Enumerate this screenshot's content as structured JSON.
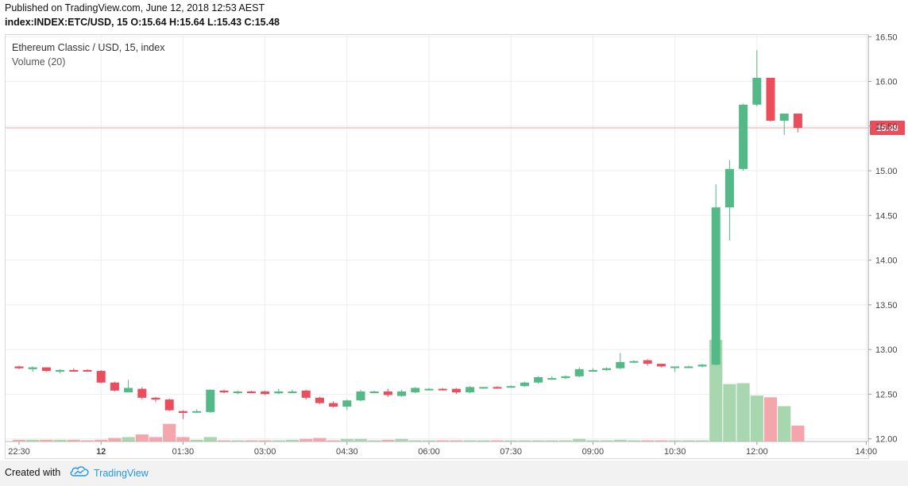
{
  "header": {
    "published": "Published on TradingView.com, June 12, 2018 12:53 AEST",
    "symbol": "index:INDEX:ETC/USD, 15",
    "ohlc": "O:15.64 H:15.64 L:15.43 C:15.48"
  },
  "legend": {
    "title": "Ethereum Classic / USD, 15, index",
    "volume": "Volume (20)"
  },
  "footer": {
    "created_with": "Created with",
    "brand": "TradingView"
  },
  "colors": {
    "up": "#53b987",
    "down": "#eb4d5c",
    "vol_up": "#a8d6ae",
    "vol_down": "#f5a6ac",
    "price_line": "#f4a3aa",
    "price_badge": "#eb4d5c",
    "grid": "#eeeeee",
    "axis_text": "#444444",
    "brand": "#2196f3"
  },
  "chart_data": {
    "type": "candlestick",
    "title": "Ethereum Classic / USD, 15, index",
    "interval_minutes": 15,
    "x_ticks": [
      "22:30",
      "12",
      "01:30",
      "03:00",
      "04:30",
      "06:00",
      "07:30",
      "09:00",
      "10:30",
      "12:00",
      "14:00"
    ],
    "y_ticks": [
      "12.00",
      "12.50",
      "13.00",
      "13.50",
      "14.00",
      "14.50",
      "15.00",
      "15.50",
      "16.00",
      "16.50"
    ],
    "ylim": [
      11.97,
      16.52
    ],
    "last_price": 15.48,
    "last_price_label": "15.48",
    "grid": true,
    "candles": [
      {
        "time": "22:30",
        "o": 12.81,
        "h": 12.82,
        "l": 12.78,
        "c": 12.79,
        "v": 2
      },
      {
        "time": "22:45",
        "o": 12.78,
        "h": 12.81,
        "l": 12.75,
        "c": 12.8,
        "v": 2
      },
      {
        "time": "23:00",
        "o": 12.8,
        "h": 12.8,
        "l": 12.75,
        "c": 12.76,
        "v": 2
      },
      {
        "time": "23:15",
        "o": 12.76,
        "h": 12.78,
        "l": 12.73,
        "c": 12.77,
        "v": 2
      },
      {
        "time": "23:30",
        "o": 12.77,
        "h": 12.79,
        "l": 12.75,
        "c": 12.76,
        "v": 2
      },
      {
        "time": "23:45",
        "o": 12.77,
        "h": 12.78,
        "l": 12.75,
        "c": 12.76,
        "v": 1
      },
      {
        "time": "00:00",
        "o": 12.76,
        "h": 12.77,
        "l": 12.62,
        "c": 12.63,
        "v": 2
      },
      {
        "time": "00:15",
        "o": 12.63,
        "h": 12.64,
        "l": 12.53,
        "c": 12.54,
        "v": 4
      },
      {
        "time": "00:30",
        "o": 12.52,
        "h": 12.66,
        "l": 12.52,
        "c": 12.57,
        "v": 5
      },
      {
        "time": "00:45",
        "o": 12.56,
        "h": 12.58,
        "l": 12.44,
        "c": 12.46,
        "v": 8
      },
      {
        "time": "01:00",
        "o": 12.46,
        "h": 12.47,
        "l": 12.41,
        "c": 12.44,
        "v": 5
      },
      {
        "time": "01:15",
        "o": 12.44,
        "h": 12.45,
        "l": 12.31,
        "c": 12.32,
        "v": 20
      },
      {
        "time": "01:30",
        "o": 12.31,
        "h": 12.32,
        "l": 12.22,
        "c": 12.29,
        "v": 5
      },
      {
        "time": "01:45",
        "o": 12.3,
        "h": 12.33,
        "l": 12.29,
        "c": 12.31,
        "v": 2
      },
      {
        "time": "02:00",
        "o": 12.3,
        "h": 12.55,
        "l": 12.29,
        "c": 12.55,
        "v": 5
      },
      {
        "time": "02:15",
        "o": 12.54,
        "h": 12.55,
        "l": 12.51,
        "c": 12.52,
        "v": 1
      },
      {
        "time": "02:30",
        "o": 12.52,
        "h": 12.54,
        "l": 12.5,
        "c": 12.53,
        "v": 1
      },
      {
        "time": "02:45",
        "o": 12.53,
        "h": 12.54,
        "l": 12.51,
        "c": 12.52,
        "v": 1
      },
      {
        "time": "03:00",
        "o": 12.53,
        "h": 12.54,
        "l": 12.49,
        "c": 12.5,
        "v": 1
      },
      {
        "time": "03:15",
        "o": 12.51,
        "h": 12.56,
        "l": 12.5,
        "c": 12.53,
        "v": 1
      },
      {
        "time": "03:30",
        "o": 12.52,
        "h": 12.55,
        "l": 12.51,
        "c": 12.53,
        "v": 2
      },
      {
        "time": "03:45",
        "o": 12.54,
        "h": 12.55,
        "l": 12.44,
        "c": 12.46,
        "v": 3
      },
      {
        "time": "04:00",
        "o": 12.46,
        "h": 12.47,
        "l": 12.39,
        "c": 12.4,
        "v": 4
      },
      {
        "time": "04:15",
        "o": 12.4,
        "h": 12.42,
        "l": 12.35,
        "c": 12.36,
        "v": 1
      },
      {
        "time": "04:30",
        "o": 12.36,
        "h": 12.44,
        "l": 12.32,
        "c": 12.43,
        "v": 3
      },
      {
        "time": "04:45",
        "o": 12.43,
        "h": 12.55,
        "l": 12.42,
        "c": 12.53,
        "v": 3
      },
      {
        "time": "05:00",
        "o": 12.52,
        "h": 12.54,
        "l": 12.51,
        "c": 12.53,
        "v": 1
      },
      {
        "time": "05:15",
        "o": 12.53,
        "h": 12.56,
        "l": 12.47,
        "c": 12.49,
        "v": 2
      },
      {
        "time": "05:30",
        "o": 12.48,
        "h": 12.55,
        "l": 12.47,
        "c": 12.53,
        "v": 3
      },
      {
        "time": "05:45",
        "o": 12.52,
        "h": 12.58,
        "l": 12.51,
        "c": 12.57,
        "v": 1
      },
      {
        "time": "06:00",
        "o": 12.55,
        "h": 12.57,
        "l": 12.54,
        "c": 12.56,
        "v": 1
      },
      {
        "time": "06:15",
        "o": 12.56,
        "h": 12.57,
        "l": 12.54,
        "c": 12.55,
        "v": 1
      },
      {
        "time": "06:30",
        "o": 12.56,
        "h": 12.57,
        "l": 12.5,
        "c": 12.52,
        "v": 1
      },
      {
        "time": "06:45",
        "o": 12.52,
        "h": 12.59,
        "l": 12.51,
        "c": 12.58,
        "v": 1
      },
      {
        "time": "07:00",
        "o": 12.57,
        "h": 12.58,
        "l": 12.56,
        "c": 12.58,
        "v": 1
      },
      {
        "time": "07:15",
        "o": 12.58,
        "h": 12.59,
        "l": 12.56,
        "c": 12.57,
        "v": 1
      },
      {
        "time": "07:30",
        "o": 12.58,
        "h": 12.6,
        "l": 12.57,
        "c": 12.59,
        "v": 1
      },
      {
        "time": "07:45",
        "o": 12.59,
        "h": 12.64,
        "l": 12.58,
        "c": 12.63,
        "v": 1
      },
      {
        "time": "08:00",
        "o": 12.63,
        "h": 12.7,
        "l": 12.62,
        "c": 12.69,
        "v": 1
      },
      {
        "time": "08:15",
        "o": 12.68,
        "h": 12.7,
        "l": 12.66,
        "c": 12.68,
        "v": 1
      },
      {
        "time": "08:30",
        "o": 12.68,
        "h": 12.71,
        "l": 12.67,
        "c": 12.7,
        "v": 1
      },
      {
        "time": "08:45",
        "o": 12.7,
        "h": 12.8,
        "l": 12.69,
        "c": 12.78,
        "v": 3
      },
      {
        "time": "09:00",
        "o": 12.77,
        "h": 12.79,
        "l": 12.75,
        "c": 12.77,
        "v": 1
      },
      {
        "time": "09:15",
        "o": 12.77,
        "h": 12.8,
        "l": 12.76,
        "c": 12.79,
        "v": 1
      },
      {
        "time": "09:30",
        "o": 12.79,
        "h": 12.96,
        "l": 12.78,
        "c": 12.86,
        "v": 2
      },
      {
        "time": "09:45",
        "o": 12.86,
        "h": 12.88,
        "l": 12.85,
        "c": 12.87,
        "v": 1
      },
      {
        "time": "10:00",
        "o": 12.88,
        "h": 12.89,
        "l": 12.82,
        "c": 12.84,
        "v": 1
      },
      {
        "time": "10:15",
        "o": 12.84,
        "h": 12.84,
        "l": 12.8,
        "c": 12.81,
        "v": 1
      },
      {
        "time": "10:30",
        "o": 12.81,
        "h": 12.81,
        "l": 12.75,
        "c": 12.81,
        "v": 1
      },
      {
        "time": "10:45",
        "o": 12.81,
        "h": 12.82,
        "l": 12.8,
        "c": 12.81,
        "v": 1
      },
      {
        "time": "11:00",
        "o": 12.81,
        "h": 12.84,
        "l": 12.8,
        "c": 12.83,
        "v": 1
      },
      {
        "time": "11:15",
        "o": 12.83,
        "h": 14.85,
        "l": 12.82,
        "c": 14.59,
        "v": 115
      },
      {
        "time": "11:30",
        "o": 14.59,
        "h": 15.12,
        "l": 14.22,
        "c": 15.02,
        "v": 65
      },
      {
        "time": "11:45",
        "o": 15.02,
        "h": 15.75,
        "l": 15.0,
        "c": 15.74,
        "v": 66
      },
      {
        "time": "12:00",
        "o": 15.74,
        "h": 16.35,
        "l": 15.72,
        "c": 16.04,
        "v": 52
      },
      {
        "time": "12:15",
        "o": 16.04,
        "h": 16.04,
        "l": 15.55,
        "c": 15.56,
        "v": 50
      },
      {
        "time": "12:30",
        "o": 15.56,
        "h": 15.64,
        "l": 15.4,
        "c": 15.64,
        "v": 40
      },
      {
        "time": "12:45",
        "o": 15.64,
        "h": 15.64,
        "l": 15.43,
        "c": 15.48,
        "v": 18
      }
    ]
  }
}
